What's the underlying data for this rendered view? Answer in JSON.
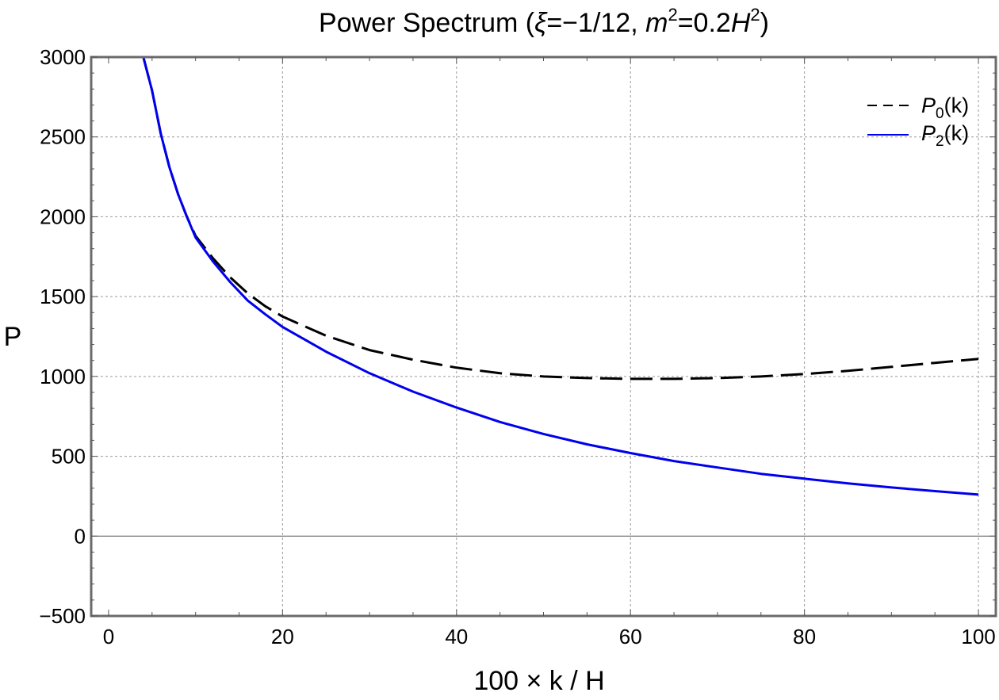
{
  "chart_data": {
    "type": "line",
    "title": {
      "prefix": "Power Spectrum (",
      "xi_symbol": "ξ",
      "xi_value": "=−1/12, ",
      "m_symbol": "m",
      "m_power": "2",
      "mass_value": "=0.2",
      "h_symbol": "H",
      "h_power": "2",
      "suffix": ")"
    },
    "xlabel": "100 × k / H",
    "ylabel": "P",
    "xlim": [
      -2,
      102
    ],
    "ylim": [
      -500,
      3000
    ],
    "x_ticks": [
      {
        "value": 0,
        "label": "0"
      },
      {
        "value": 20,
        "label": "20"
      },
      {
        "value": 40,
        "label": "40"
      },
      {
        "value": 60,
        "label": "60"
      },
      {
        "value": 80,
        "label": "80"
      },
      {
        "value": 100,
        "label": "100"
      }
    ],
    "y_ticks": [
      {
        "value": -500,
        "label": "−500"
      },
      {
        "value": 0,
        "label": "0"
      },
      {
        "value": 500,
        "label": "500"
      },
      {
        "value": 1000,
        "label": "1000"
      },
      {
        "value": 1500,
        "label": "1500"
      },
      {
        "value": 2000,
        "label": "2000"
      },
      {
        "value": 2500,
        "label": "2500"
      },
      {
        "value": 3000,
        "label": "3000"
      }
    ],
    "grid": true,
    "legend_position": "top-right",
    "series": [
      {
        "name": "P0(k)",
        "legend_symbol": "P",
        "legend_sub": "0",
        "legend_arg": "(k)",
        "color": "#000000",
        "dashed": true,
        "x": [
          4,
          5,
          6,
          7,
          8,
          9,
          10,
          12,
          14,
          16,
          18,
          20,
          25,
          30,
          35,
          40,
          45,
          50,
          55,
          60,
          65,
          70,
          75,
          80,
          85,
          90,
          95,
          100
        ],
        "y": [
          3000,
          2790,
          2520,
          2310,
          2140,
          2000,
          1880,
          1740,
          1620,
          1520,
          1440,
          1375,
          1255,
          1165,
          1105,
          1055,
          1020,
          1000,
          990,
          985,
          985,
          990,
          1000,
          1015,
          1035,
          1060,
          1085,
          1110
        ]
      },
      {
        "name": "P2(k)",
        "legend_symbol": "P",
        "legend_sub": "2",
        "legend_arg": "(k)",
        "color": "#0000ee",
        "dashed": false,
        "x": [
          4,
          5,
          6,
          7,
          8,
          9,
          10,
          12,
          14,
          16,
          18,
          20,
          25,
          30,
          35,
          40,
          45,
          50,
          55,
          60,
          65,
          70,
          75,
          80,
          85,
          90,
          95,
          100
        ],
        "y": [
          3000,
          2790,
          2520,
          2310,
          2140,
          2000,
          1870,
          1720,
          1590,
          1475,
          1390,
          1310,
          1155,
          1020,
          905,
          805,
          715,
          640,
          575,
          520,
          470,
          430,
          390,
          360,
          330,
          305,
          282,
          260
        ]
      }
    ]
  }
}
